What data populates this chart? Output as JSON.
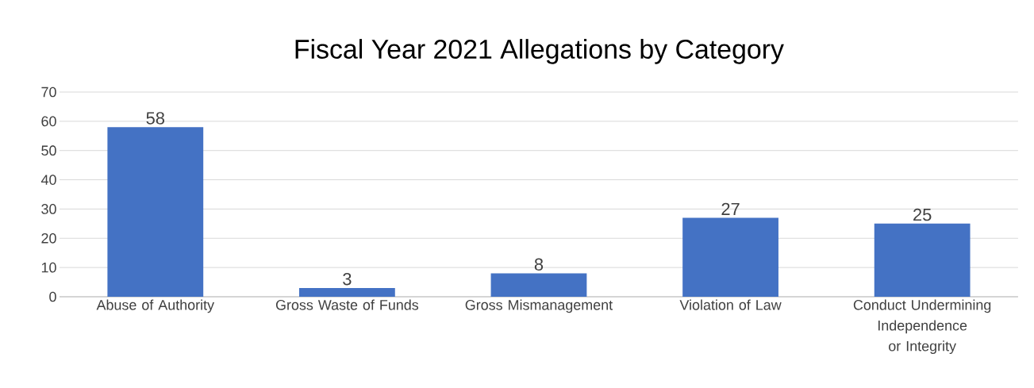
{
  "chart_data": {
    "type": "bar",
    "title": "Fiscal Year 2021 Allegations by Category",
    "categories": [
      "Abuse of Authority",
      "Gross Waste of Funds",
      "Gross Mismanagement",
      "Violation of Law",
      "Conduct Undermining Independence or Integrity"
    ],
    "values": [
      58,
      3,
      8,
      27,
      25
    ],
    "color": "#4472c4",
    "ylim": [
      0,
      70
    ],
    "yticks": [
      0,
      10,
      20,
      30,
      40,
      50,
      60,
      70
    ],
    "grid": "y",
    "data_labels": true
  }
}
